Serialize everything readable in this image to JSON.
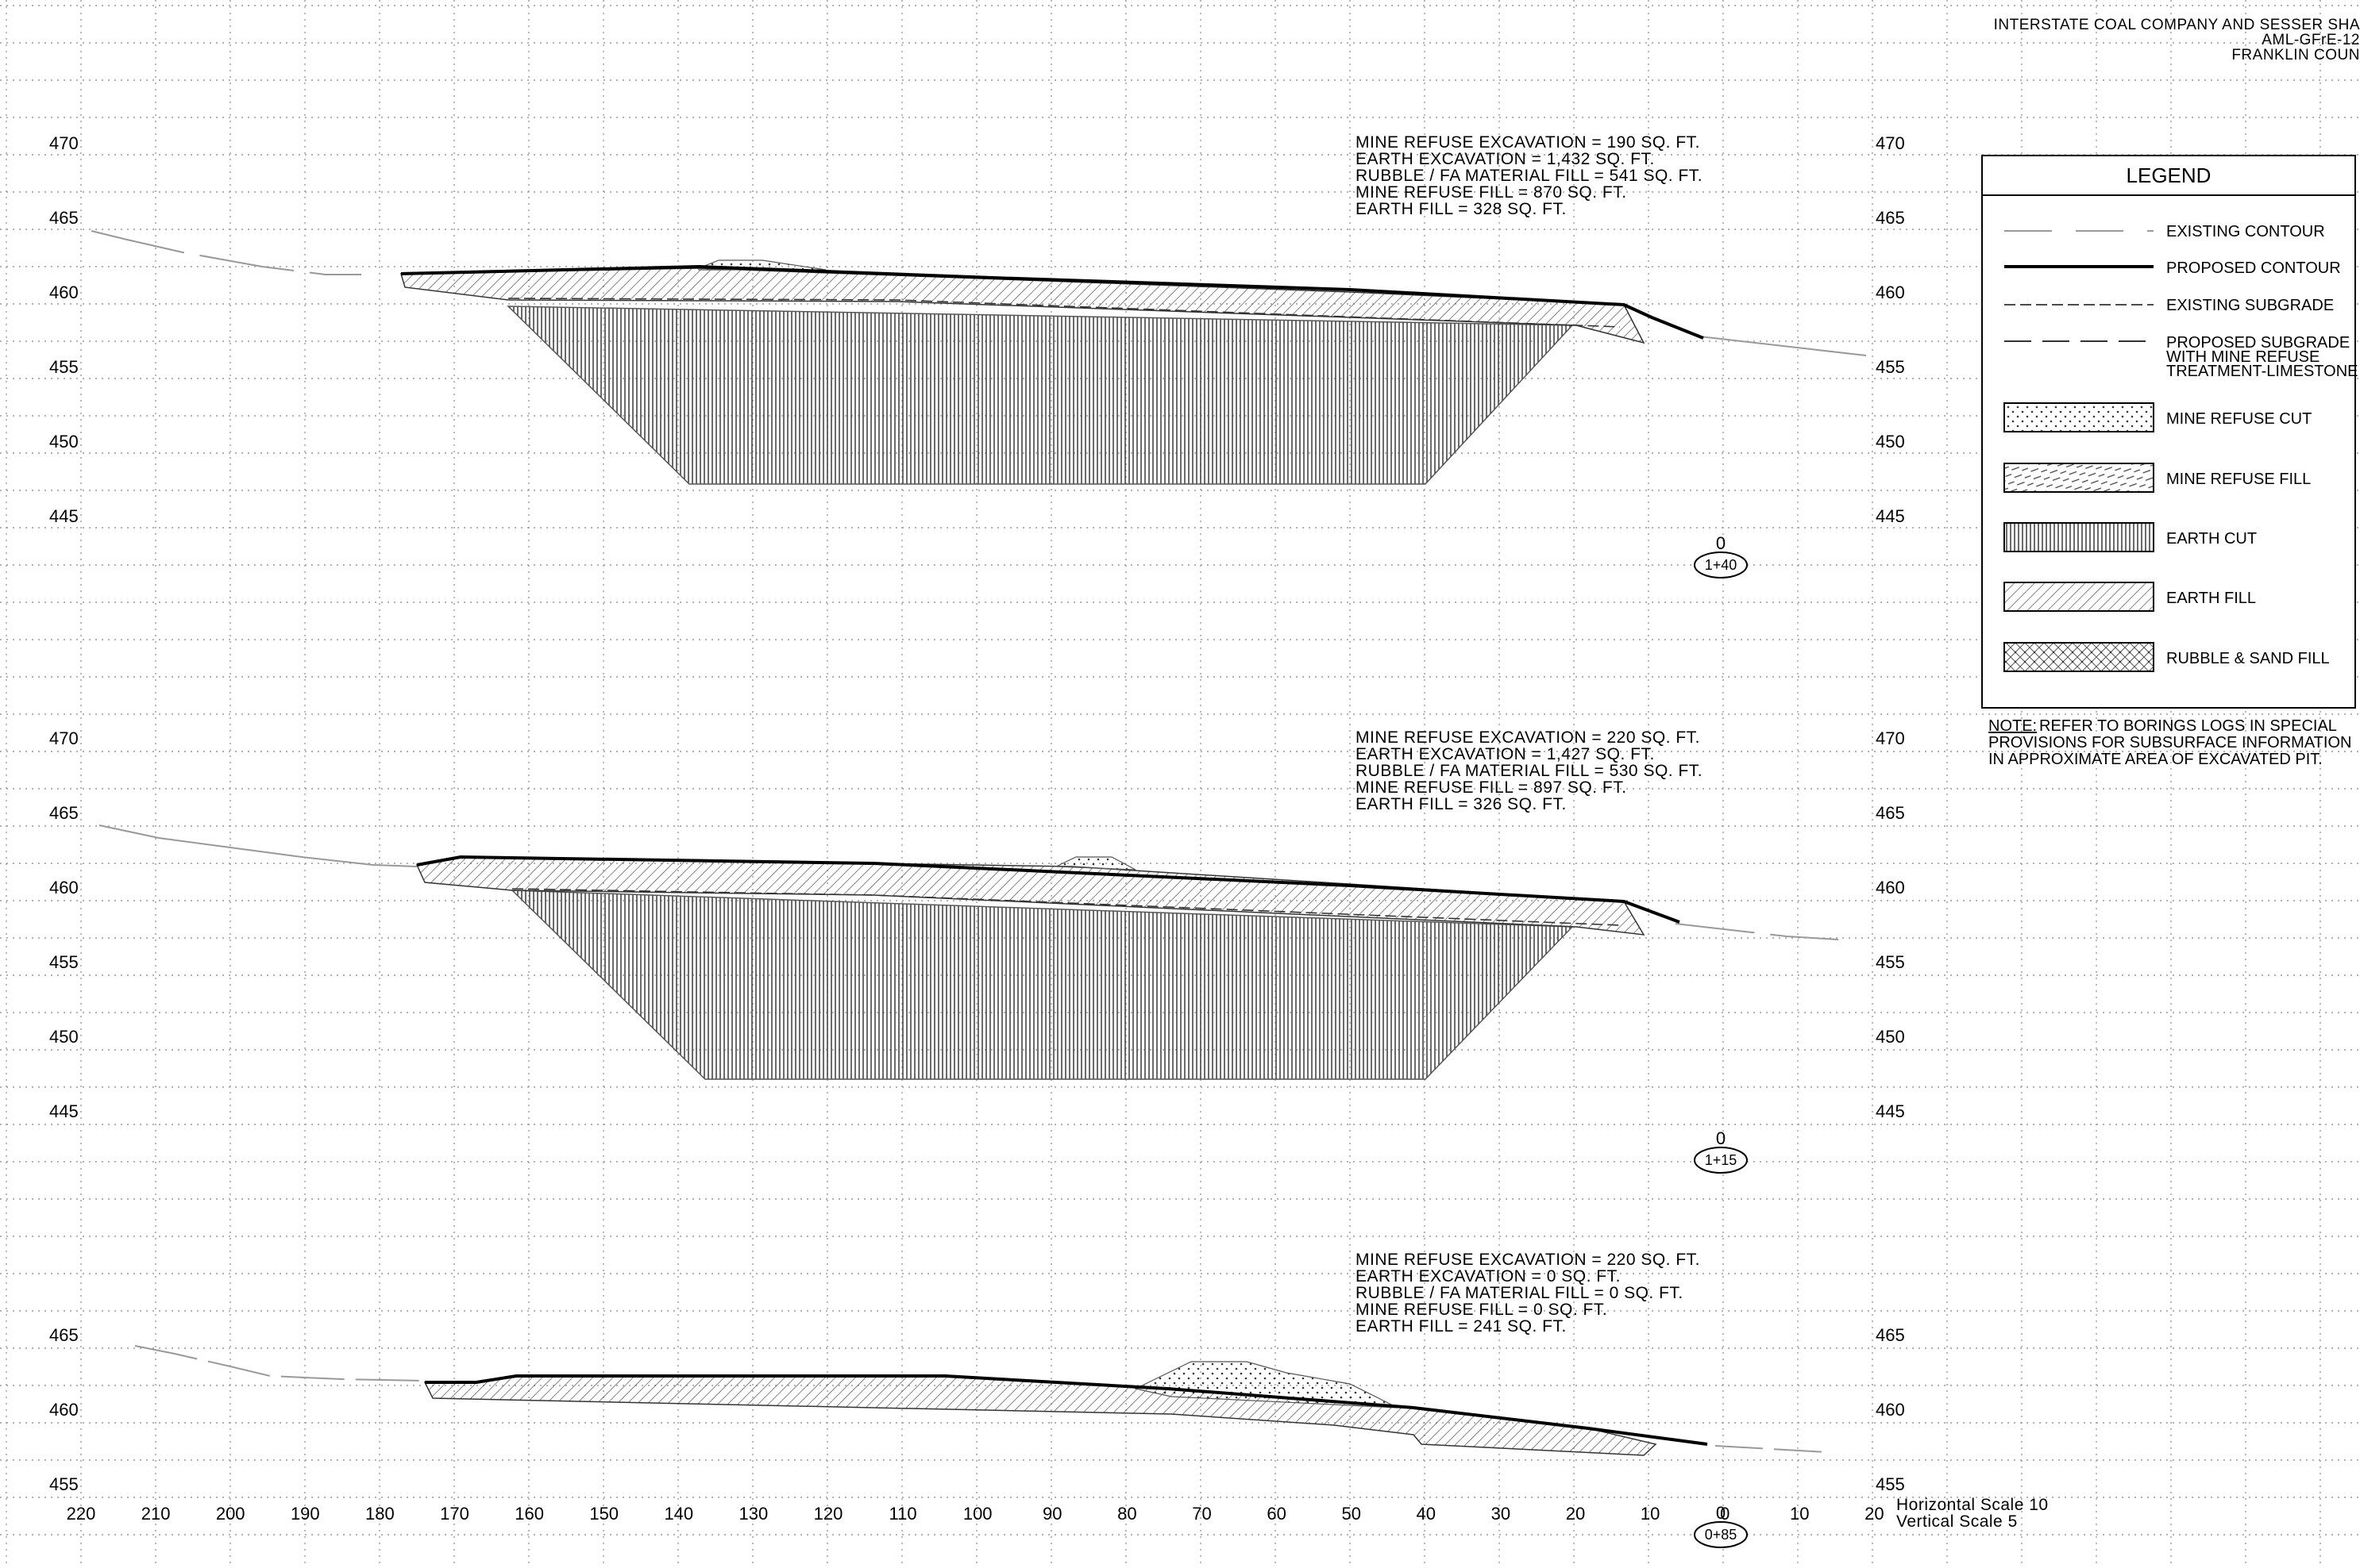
{
  "header": {
    "line1": "INTERSTATE COAL COMPANY AND SESSER SHA",
    "line2": "AML-GFrE-12",
    "line3": "FRANKLIN COUN"
  },
  "legend": {
    "title": "LEGEND",
    "items": [
      {
        "label": "EXISTING CONTOUR"
      },
      {
        "label": "PROPOSED CONTOUR"
      },
      {
        "label": "EXISTING SUBGRADE"
      },
      {
        "label": "PROPOSED SUBGRADE",
        "label2": "WITH MINE REFUSE",
        "label3": "TREATMENT-LIMESTONE"
      },
      {
        "label": "MINE REFUSE CUT"
      },
      {
        "label": "MINE REFUSE FILL"
      },
      {
        "label": "EARTH CUT"
      },
      {
        "label": "EARTH FILL"
      },
      {
        "label": "RUBBLE & SAND FILL"
      }
    ],
    "note_label": "NOTE:",
    "note_line1": " REFER TO BORINGS LOGS IN SPECIAL",
    "note_line2": "PROVISIONS FOR SUBSURFACE INFORMATION",
    "note_line3": "IN APPROXIMATE AREA OF EXCAVATED PIT."
  },
  "sections": [
    {
      "station": "1+40",
      "offset": "0",
      "elevations_left": [
        "470",
        "465",
        "460",
        "455",
        "450",
        "445"
      ],
      "elevations_right": [
        "470",
        "465",
        "460",
        "455",
        "450",
        "445"
      ],
      "quantities": [
        "MINE REFUSE EXCAVATION = 190 SQ. FT.",
        "EARTH EXCAVATION = 1,432 SQ. FT.",
        "RUBBLE / FA MATERIAL FILL = 541 SQ. FT.",
        "MINE REFUSE FILL = 870 SQ. FT.",
        "EARTH FILL = 328 SQ. FT."
      ]
    },
    {
      "station": "1+15",
      "offset": "0",
      "elevations_left": [
        "470",
        "465",
        "460",
        "455",
        "450",
        "445"
      ],
      "elevations_right": [
        "470",
        "465",
        "460",
        "455",
        "450",
        "445"
      ],
      "quantities": [
        "MINE REFUSE EXCAVATION = 220 SQ. FT.",
        "EARTH EXCAVATION = 1,427 SQ. FT.",
        "RUBBLE / FA MATERIAL FILL = 530 SQ. FT.",
        "MINE REFUSE FILL = 897 SQ. FT.",
        "EARTH FILL = 326 SQ. FT."
      ]
    },
    {
      "station": "0+85",
      "offset": "0",
      "elevations_left": [
        "465",
        "460",
        "455"
      ],
      "elevations_right": [
        "465",
        "460",
        "455"
      ],
      "quantities": [
        "MINE REFUSE EXCAVATION = 220 SQ. FT.",
        "EARTH EXCAVATION = 0 SQ. FT.",
        "RUBBLE / FA MATERIAL FILL = 0 SQ. FT.",
        "MINE REFUSE FILL = 0 SQ. FT.",
        "EARTH FILL = 241 SQ. FT."
      ]
    }
  ],
  "x_axis": {
    "ticks": [
      "220",
      "210",
      "200",
      "190",
      "180",
      "170",
      "160",
      "150",
      "140",
      "130",
      "120",
      "110",
      "100",
      "90",
      "80",
      "70",
      "60",
      "50",
      "40",
      "30",
      "20",
      "10",
      "0",
      "10",
      "20"
    ]
  },
  "scales": {
    "horizontal": "Horizontal Scale 10",
    "vertical": "Vertical Scale 5"
  }
}
